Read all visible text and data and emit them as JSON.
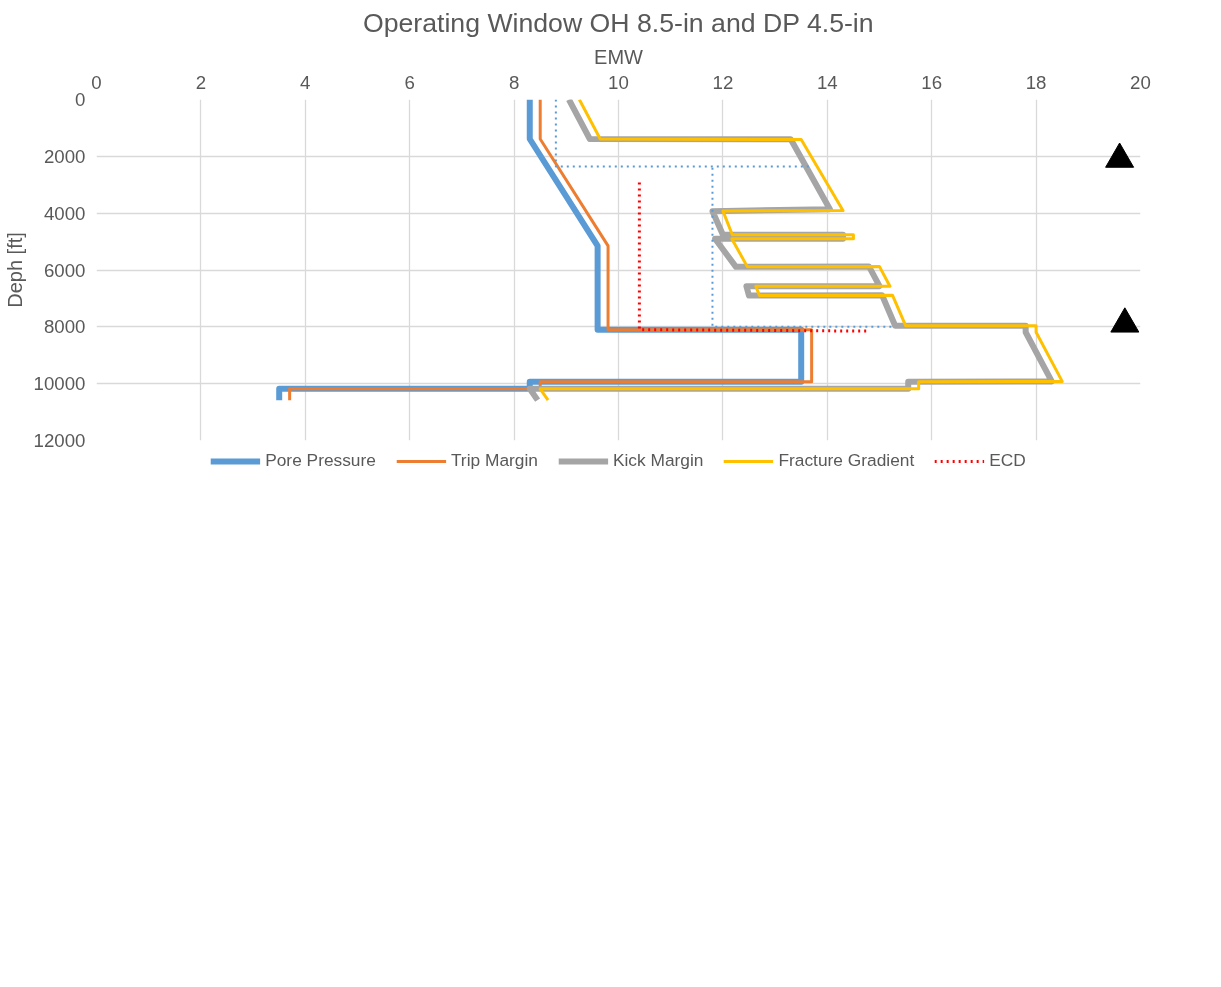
{
  "chart_data": {
    "type": "line",
    "title": "Operating Window OH 8.5-in and DP 4.5-in",
    "xlabel": "EMW",
    "ylabel": "Deph [ft]",
    "xlim": [
      0,
      20
    ],
    "xticks": [
      0,
      2,
      4,
      6,
      8,
      10,
      12,
      14,
      16,
      18,
      20
    ],
    "ylim": [
      12000,
      0
    ],
    "yticks": [
      0,
      2000,
      4000,
      6000,
      8000,
      10000,
      12000
    ],
    "grid": true,
    "legend": "bottom",
    "line_style": "solid",
    "marker": "none",
    "series": [
      {
        "name": "Pore Pressure",
        "color": "#5b9bd5",
        "x": [
          8.3,
          8.3,
          9.6,
          9.6,
          13.5,
          13.5,
          8.3,
          8.3,
          3.5,
          3.5
        ],
        "values": [
          0,
          1390,
          5150,
          8100,
          8100,
          9930,
          9930,
          10180,
          10180,
          10580
        ]
      },
      {
        "name": "Trip Margin",
        "color": "#ed7d31",
        "x": [
          8.5,
          8.5,
          9.8,
          9.8,
          13.7,
          13.7,
          8.5,
          8.5,
          3.7,
          3.7
        ],
        "values": [
          0,
          1390,
          5150,
          8100,
          8100,
          9930,
          9930,
          10180,
          10180,
          10580
        ]
      },
      {
        "name": "Kick Margin",
        "color": "#a5a5a5",
        "x": [
          9.05,
          9.45,
          13.3,
          14.05,
          11.8,
          12.0,
          14.3,
          14.3,
          11.85,
          12.25,
          14.8,
          15.0,
          12.45,
          12.5,
          15.05,
          15.3,
          17.8,
          17.8,
          18.3,
          15.55,
          15.55,
          8.3,
          8.45
        ],
        "values": [
          0,
          1390,
          1400,
          3860,
          3930,
          4760,
          4760,
          4900,
          4900,
          5890,
          5880,
          6570,
          6570,
          6900,
          6890,
          7960,
          7960,
          8190,
          9920,
          9930,
          10180,
          10180,
          10580
        ]
      },
      {
        "name": "Fracture Gradient",
        "color": "#ffc000",
        "x": [
          9.25,
          9.65,
          13.5,
          14.3,
          12.0,
          12.18,
          14.5,
          14.5,
          12.17,
          12.47,
          15.0,
          15.2,
          12.63,
          12.7,
          15.25,
          15.5,
          18.0,
          18.0,
          18.5,
          15.75,
          15.75,
          8.5,
          8.65
        ],
        "values": [
          0,
          1390,
          1410,
          3910,
          3920,
          4760,
          4760,
          4900,
          4900,
          5890,
          5880,
          6570,
          6570,
          6900,
          6890,
          7960,
          7960,
          8190,
          9920,
          9930,
          10180,
          10180,
          10580
        ]
      },
      {
        "name": "ECD",
        "color": "#ff0000",
        "line_style": "dotted",
        "x": [
          10.4,
          10.4,
          14.8
        ],
        "values": [
          2920,
          8100,
          8150
        ]
      },
      {
        "color": "#5b9bd5",
        "line_style": "dotted",
        "x": [
          8.8,
          8.8,
          13.65
        ],
        "values": [
          0,
          2360,
          2360
        ]
      },
      {
        "color": "#5b9bd5",
        "line_style": "dotted",
        "x": [
          11.8,
          11.8,
          15.25
        ],
        "values": [
          2400,
          8000,
          8000
        ]
      },
      {
        "type": "scatter",
        "marker": "triangle",
        "color": "#000000",
        "x": [
          19.6,
          19.7
        ],
        "values": [
          2100,
          7900
        ]
      }
    ]
  }
}
